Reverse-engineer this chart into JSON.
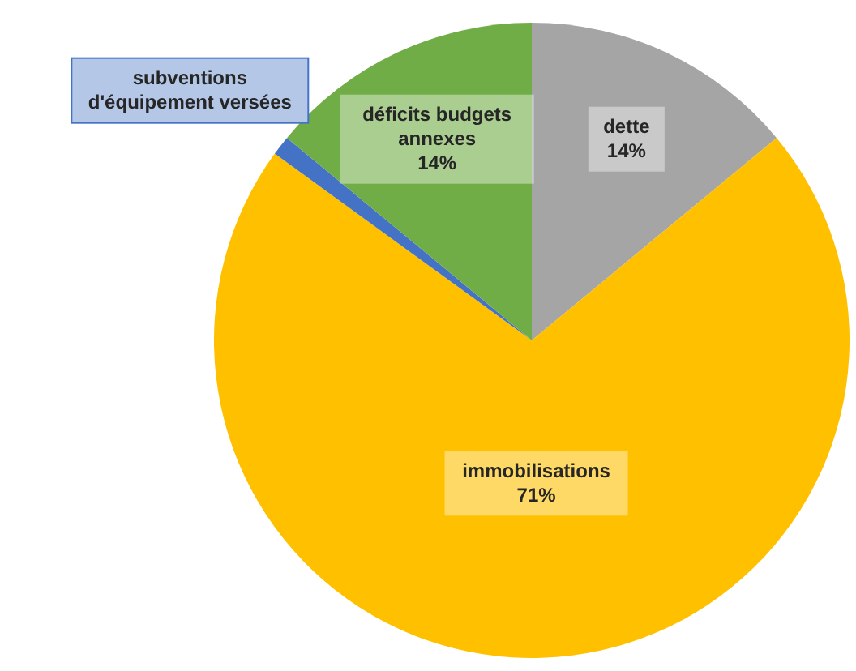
{
  "chart_data": {
    "type": "pie",
    "categories": [
      "dette",
      "immobilisations",
      "subventions d'équipement versées",
      "déficits budgets annexes"
    ],
    "values": [
      14,
      71,
      1,
      14
    ],
    "value_labels": [
      "14%",
      "71%",
      null,
      "14%"
    ],
    "colors": [
      "#a5a5a5",
      "#ffc000",
      "#4472c4",
      "#70ad47"
    ]
  }
}
